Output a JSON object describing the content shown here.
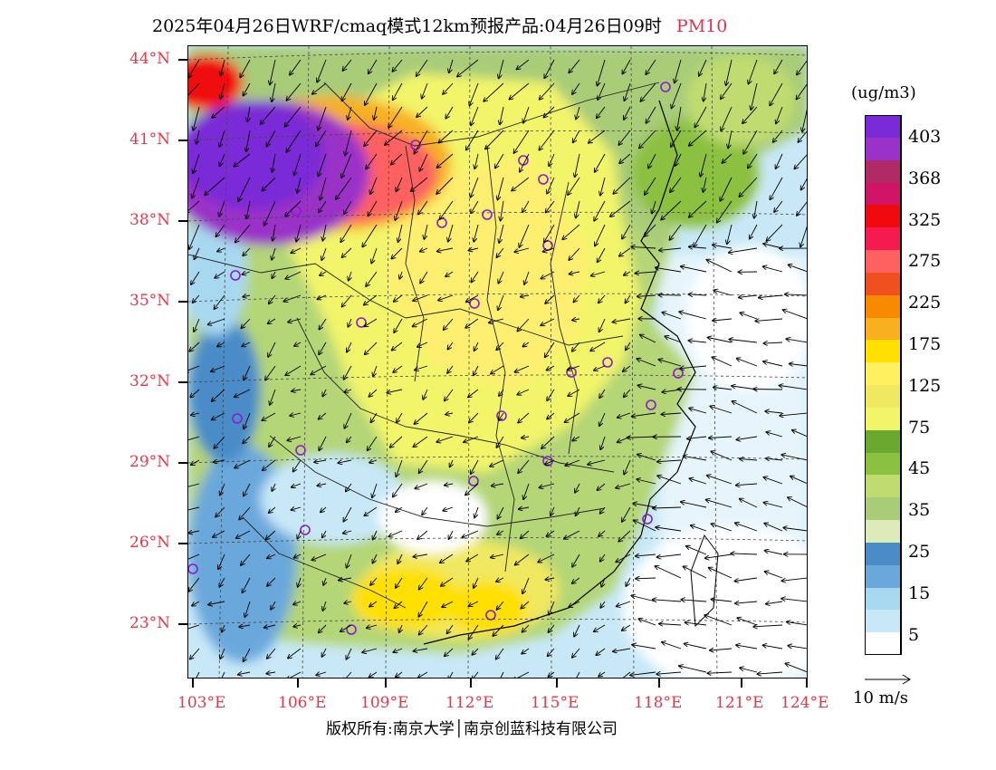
{
  "title": {
    "main": "2025年04月26日WRF/cmaq模式12km预报产品:04月26日09时",
    "variable": "PM10"
  },
  "map": {
    "lat_labels": [
      "44°N",
      "41°N",
      "38°N",
      "35°N",
      "32°N",
      "29°N",
      "26°N",
      "23°N"
    ],
    "lon_labels": [
      "103°E",
      "106°E",
      "109°E",
      "112°E",
      "115°E",
      "118°E",
      "121°E",
      "124°E"
    ]
  },
  "colorbar": {
    "unit": "(ug/m3)",
    "labels": [
      "403",
      "368",
      "325",
      "275",
      "225",
      "175",
      "125",
      "75",
      "45",
      "35",
      "25",
      "15",
      "5"
    ],
    "colors": [
      "#7a2ad6",
      "#9a32c8",
      "#b02a66",
      "#d01468",
      "#f00a10",
      "#f51a50",
      "#ff6060",
      "#f05020",
      "#f88a00",
      "#f8b020",
      "#ffe000",
      "#fff060",
      "#f0e860",
      "#f2f56a",
      "#6aa830",
      "#8cc040",
      "#c0dc70",
      "#a8cc78",
      "#dcebb8",
      "#4a8cc8",
      "#6aa8dc",
      "#a8d8f0",
      "#c8e8f8",
      "#ffffff"
    ],
    "accent_label_color": "#e03a4a"
  },
  "wind_legend": {
    "label": "10 m/s"
  },
  "footer": {
    "copyright": "版权所有:南京大学│南京创蓝科技有限公司"
  }
}
